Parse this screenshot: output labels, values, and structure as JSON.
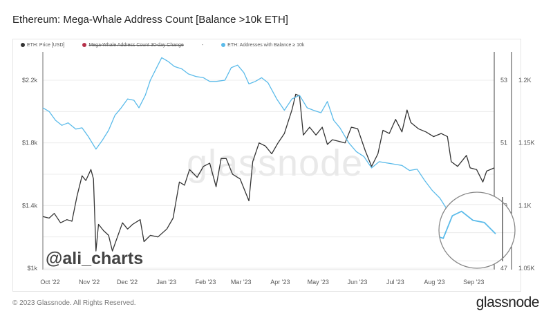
{
  "title": "Ethereum: Mega-Whale Address Count [Balance >10k ETH]",
  "footer": "© 2023 Glassnode. All Rights Reserved.",
  "logo": "glassnode",
  "watermark": "glassnode",
  "handle": "@ali_charts",
  "legend": [
    {
      "label": "ETH: Price [USD]",
      "color": "#333333"
    },
    {
      "label": "Mega-Whale Address Count 30-day Change",
      "color": "#b5304a",
      "struck": true
    },
    {
      "label": "-",
      "color": ""
    },
    {
      "label": "ETH: Addresses with Balance ≥ 10k",
      "color": "#5bbbea"
    }
  ],
  "chart_data": {
    "type": "line",
    "title": "Ethereum: Mega-Whale Address Count [Balance >10k ETH]",
    "x_ticks": [
      "Oct '22",
      "Nov '22",
      "Dec '22",
      "Jan '23",
      "Feb '23",
      "Mar '23",
      "Apr '23",
      "May '23",
      "Jun '23",
      "Jul '23",
      "Aug '23",
      "Sep '23"
    ],
    "x_tick_dates": [
      "2022-10-01",
      "2022-11-01",
      "2022-12-01",
      "2023-01-01",
      "2023-02-01",
      "2023-03-01",
      "2023-04-01",
      "2023-05-01",
      "2023-06-01",
      "2023-07-01",
      "2023-08-01",
      "2023-09-01"
    ],
    "xlim": [
      "2022-09-28",
      "2023-09-20"
    ],
    "y_left": {
      "ticks": [
        "$1k",
        "$1.4k",
        "$1.8k",
        "$2.2k"
      ],
      "tick_values": [
        1000,
        1400,
        1800,
        2200
      ],
      "range": [
        1000,
        2200
      ]
    },
    "y_right1": {
      "ticks": [
        "47",
        "49",
        "51",
        "53"
      ],
      "tick_values": [
        47,
        49,
        51,
        53
      ],
      "range": [
        47,
        53
      ]
    },
    "y_right2": {
      "ticks": [
        "1.05K",
        "1.1K",
        "1.15K",
        "1.2K"
      ],
      "tick_values": [
        1050,
        1100,
        1150,
        1200
      ],
      "range": [
        1050,
        1200
      ]
    },
    "grid": true,
    "legend_position": "top-left",
    "series": [
      {
        "name": "ETH: Price [USD]",
        "axis": "left",
        "color": "#333333",
        "points": [
          [
            "2022-09-28",
            1330
          ],
          [
            "2022-10-03",
            1320
          ],
          [
            "2022-10-07",
            1350
          ],
          [
            "2022-10-12",
            1290
          ],
          [
            "2022-10-17",
            1310
          ],
          [
            "2022-10-21",
            1300
          ],
          [
            "2022-10-25",
            1460
          ],
          [
            "2022-10-29",
            1590
          ],
          [
            "2022-11-01",
            1560
          ],
          [
            "2022-11-05",
            1630
          ],
          [
            "2022-11-07",
            1570
          ],
          [
            "2022-11-09",
            1110
          ],
          [
            "2022-11-11",
            1280
          ],
          [
            "2022-11-15",
            1240
          ],
          [
            "2022-11-19",
            1210
          ],
          [
            "2022-11-22",
            1110
          ],
          [
            "2022-11-26",
            1200
          ],
          [
            "2022-11-30",
            1290
          ],
          [
            "2022-12-04",
            1250
          ],
          [
            "2022-12-08",
            1280
          ],
          [
            "2022-12-14",
            1310
          ],
          [
            "2022-12-17",
            1170
          ],
          [
            "2022-12-22",
            1210
          ],
          [
            "2022-12-28",
            1200
          ],
          [
            "2023-01-04",
            1250
          ],
          [
            "2023-01-09",
            1320
          ],
          [
            "2023-01-14",
            1550
          ],
          [
            "2023-01-18",
            1530
          ],
          [
            "2023-01-22",
            1630
          ],
          [
            "2023-01-28",
            1580
          ],
          [
            "2023-02-02",
            1650
          ],
          [
            "2023-02-07",
            1670
          ],
          [
            "2023-02-12",
            1520
          ],
          [
            "2023-02-16",
            1700
          ],
          [
            "2023-02-20",
            1700
          ],
          [
            "2023-02-25",
            1600
          ],
          [
            "2023-03-03",
            1570
          ],
          [
            "2023-03-10",
            1430
          ],
          [
            "2023-03-13",
            1680
          ],
          [
            "2023-03-18",
            1800
          ],
          [
            "2023-03-23",
            1780
          ],
          [
            "2023-03-28",
            1730
          ],
          [
            "2023-04-02",
            1800
          ],
          [
            "2023-04-07",
            1860
          ],
          [
            "2023-04-13",
            2010
          ],
          [
            "2023-04-16",
            2110
          ],
          [
            "2023-04-19",
            2100
          ],
          [
            "2023-04-22",
            1850
          ],
          [
            "2023-04-27",
            1900
          ],
          [
            "2023-05-02",
            1850
          ],
          [
            "2023-05-07",
            1900
          ],
          [
            "2023-05-11",
            1790
          ],
          [
            "2023-05-15",
            1820
          ],
          [
            "2023-05-20",
            1810
          ],
          [
            "2023-05-25",
            1800
          ],
          [
            "2023-05-30",
            1900
          ],
          [
            "2023-06-04",
            1890
          ],
          [
            "2023-06-10",
            1750
          ],
          [
            "2023-06-15",
            1650
          ],
          [
            "2023-06-20",
            1730
          ],
          [
            "2023-06-24",
            1880
          ],
          [
            "2023-06-29",
            1860
          ],
          [
            "2023-07-04",
            1950
          ],
          [
            "2023-07-09",
            1870
          ],
          [
            "2023-07-13",
            2010
          ],
          [
            "2023-07-16",
            1930
          ],
          [
            "2023-07-22",
            1890
          ],
          [
            "2023-07-28",
            1870
          ],
          [
            "2023-08-03",
            1840
          ],
          [
            "2023-08-09",
            1860
          ],
          [
            "2023-08-14",
            1840
          ],
          [
            "2023-08-17",
            1680
          ],
          [
            "2023-08-22",
            1650
          ],
          [
            "2023-08-29",
            1720
          ],
          [
            "2023-09-01",
            1640
          ],
          [
            "2023-09-06",
            1630
          ],
          [
            "2023-09-11",
            1550
          ],
          [
            "2023-09-14",
            1620
          ],
          [
            "2023-09-20",
            1640
          ]
        ]
      },
      {
        "name": "ETH: Addresses with Balance ≥ 10k",
        "axis": "right2",
        "color": "#5bbbea",
        "points": [
          [
            "2022-09-28",
            1178
          ],
          [
            "2022-10-03",
            1175
          ],
          [
            "2022-10-08",
            1168
          ],
          [
            "2022-10-13",
            1164
          ],
          [
            "2022-10-18",
            1166
          ],
          [
            "2022-10-24",
            1161
          ],
          [
            "2022-10-29",
            1162
          ],
          [
            "2022-11-03",
            1155
          ],
          [
            "2022-11-09",
            1145
          ],
          [
            "2022-11-14",
            1152
          ],
          [
            "2022-11-19",
            1160
          ],
          [
            "2022-11-24",
            1172
          ],
          [
            "2022-11-29",
            1178
          ],
          [
            "2022-12-04",
            1185
          ],
          [
            "2022-12-09",
            1184
          ],
          [
            "2022-12-13",
            1178
          ],
          [
            "2022-12-18",
            1188
          ],
          [
            "2022-12-22",
            1200
          ],
          [
            "2022-12-27",
            1210
          ],
          [
            "2022-12-31",
            1218
          ],
          [
            "2023-01-05",
            1215
          ],
          [
            "2023-01-10",
            1211
          ],
          [
            "2023-01-16",
            1209
          ],
          [
            "2023-01-21",
            1205
          ],
          [
            "2023-01-27",
            1203
          ],
          [
            "2023-02-02",
            1202
          ],
          [
            "2023-02-07",
            1199
          ],
          [
            "2023-02-12",
            1199
          ],
          [
            "2023-02-19",
            1200
          ],
          [
            "2023-02-24",
            1210
          ],
          [
            "2023-03-01",
            1212
          ],
          [
            "2023-03-06",
            1206
          ],
          [
            "2023-03-10",
            1197
          ],
          [
            "2023-03-15",
            1199
          ],
          [
            "2023-03-20",
            1202
          ],
          [
            "2023-03-25",
            1198
          ],
          [
            "2023-04-01",
            1185
          ],
          [
            "2023-04-07",
            1176
          ],
          [
            "2023-04-13",
            1185
          ],
          [
            "2023-04-19",
            1188
          ],
          [
            "2023-04-25",
            1178
          ],
          [
            "2023-04-30",
            1176
          ],
          [
            "2023-05-06",
            1174
          ],
          [
            "2023-05-11",
            1183
          ],
          [
            "2023-05-16",
            1168
          ],
          [
            "2023-05-21",
            1162
          ],
          [
            "2023-05-28",
            1150
          ],
          [
            "2023-06-03",
            1143
          ],
          [
            "2023-06-09",
            1139
          ],
          [
            "2023-06-15",
            1130
          ],
          [
            "2023-06-21",
            1135
          ],
          [
            "2023-06-27",
            1134
          ],
          [
            "2023-07-03",
            1133
          ],
          [
            "2023-07-09",
            1132
          ],
          [
            "2023-07-15",
            1128
          ],
          [
            "2023-07-21",
            1129
          ],
          [
            "2023-07-27",
            1120
          ],
          [
            "2023-08-02",
            1112
          ],
          [
            "2023-08-08",
            1106
          ],
          [
            "2023-08-13",
            1098
          ],
          [
            "2023-08-17",
            1092
          ],
          [
            "2023-08-21",
            1093
          ],
          [
            "2023-08-25",
            1086
          ],
          [
            "2023-08-28",
            1085
          ],
          [
            "2023-09-01",
            1095
          ],
          [
            "2023-09-05",
            1097
          ],
          [
            "2023-09-10",
            1093
          ],
          [
            "2023-09-15",
            1092
          ],
          [
            "2023-09-20",
            1087
          ]
        ]
      }
    ]
  }
}
